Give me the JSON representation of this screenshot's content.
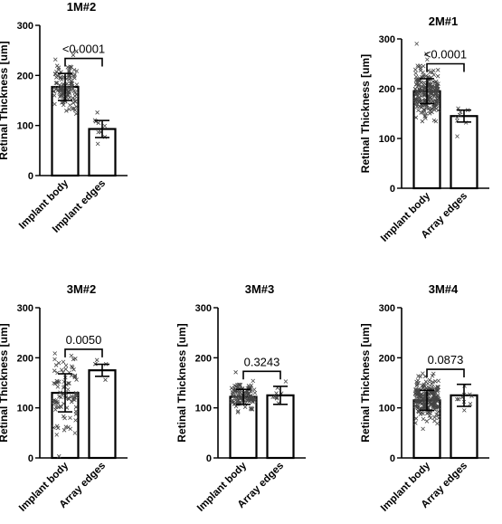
{
  "chart_data": [
    {
      "type": "bar",
      "title": "1M#2",
      "ylabel": "Retinal Thickness [um]",
      "ylim": [
        0,
        300
      ],
      "yticks": [
        0,
        100,
        200,
        300
      ],
      "categories": [
        "Implant body",
        "Implant edges"
      ],
      "means": [
        177,
        93
      ],
      "sd": [
        27,
        17
      ],
      "n_points": [
        120,
        10
      ],
      "p_value": "<0.0001",
      "grid": false
    },
    {
      "type": "bar",
      "title": "2M#1",
      "ylabel": "Retinal Thickness [um]",
      "ylim": [
        0,
        300
      ],
      "yticks": [
        0,
        100,
        200,
        300
      ],
      "categories": [
        "Implant body",
        "Array edges"
      ],
      "means": [
        195,
        145
      ],
      "sd": [
        25,
        12
      ],
      "n_points": [
        220,
        8
      ],
      "p_value": "<0.0001",
      "grid": false
    },
    {
      "type": "bar",
      "title": "3M#2",
      "ylabel": "Retinal Thickness [um]",
      "ylim": [
        0,
        300
      ],
      "yticks": [
        0,
        100,
        200,
        300
      ],
      "categories": [
        "Implant body",
        "Array edges"
      ],
      "means": [
        130,
        175
      ],
      "sd": [
        38,
        12
      ],
      "n_points": [
        90,
        5
      ],
      "p_value": "0.0050",
      "grid": false
    },
    {
      "type": "bar",
      "title": "3M#3",
      "ylabel": "Retinal Thickness [um]",
      "ylim": [
        0,
        300
      ],
      "yticks": [
        0,
        100,
        200,
        300
      ],
      "categories": [
        "Implant body",
        "Array edges"
      ],
      "means": [
        122,
        125
      ],
      "sd": [
        15,
        18
      ],
      "n_points": [
        110,
        10
      ],
      "p_value": "0.3243",
      "grid": false
    },
    {
      "type": "bar",
      "title": "3M#4",
      "ylabel": "Retinal Thickness [um]",
      "ylim": [
        0,
        300
      ],
      "yticks": [
        0,
        100,
        200,
        300
      ],
      "categories": [
        "Implant body",
        "Array edges"
      ],
      "means": [
        115,
        125
      ],
      "sd": [
        20,
        22
      ],
      "n_points": [
        220,
        10
      ],
      "p_value": "0.0873",
      "grid": false
    }
  ]
}
